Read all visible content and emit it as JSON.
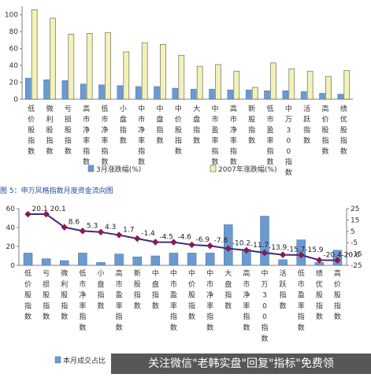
{
  "figure_caption": "图 5：申万风格指数月度资金流向图",
  "watermark": "关注微信\"老韩实盘\"回复\"指标\"免费领",
  "colors": {
    "bar_blue": "#6a9ad0",
    "bar_yellow": "#f2f2b8",
    "line_purple": "#3a2a8a",
    "marker_red": "#8a1a4a",
    "axis": "#7f7f7f"
  },
  "chart_data": [
    {
      "type": "bar",
      "categories": [
        "低价股指数",
        "微利股指数",
        "亏损股指数",
        "高市净率指数",
        "低市净率指数",
        "小盘指数",
        "中市净率指数",
        "中盘指数",
        "中价股指数",
        "大盘指数",
        "中市盈率指数",
        "高市净率指数",
        "新股指数",
        "低市盈率指数",
        "中万300指数",
        "活跃指数",
        "高价股指数",
        "绩优股指数"
      ],
      "series": [
        {
          "name": "3月涨跌幅(%)",
          "values": [
            25,
            23,
            22,
            18,
            17,
            16,
            15,
            15,
            13,
            12,
            12,
            11,
            11,
            10,
            10,
            9,
            7,
            6
          ]
        },
        {
          "name": "2007年涨跌幅(%)",
          "values": [
            106,
            96,
            77,
            78,
            79,
            56,
            67,
            65,
            52,
            39,
            41,
            33,
            14,
            43,
            36,
            33,
            27,
            34
          ]
        }
      ],
      "yticks": [
        0,
        20,
        40,
        60,
        80,
        100
      ],
      "ylim": [
        0,
        110
      ],
      "legend": "bottom"
    },
    {
      "type": "bar+line",
      "categories": [
        "低价股指数",
        "亏损股指数",
        "微利股指数",
        "低市净率指数",
        "小盘指数",
        "高市盈率指数",
        "新股指数",
        "中盘指数",
        "中市盈率指数",
        "中价股指数",
        "中市净率指数",
        "大盘指数",
        "高市净率指数",
        "中万300指数",
        "活跃指数",
        "低市盈率指数",
        "绩优股指数",
        "高价股指数"
      ],
      "series": [
        {
          "name": "本月成交占比",
          "axis": "left",
          "values": [
            13,
            7,
            5,
            13,
            3,
            12,
            9,
            10,
            13,
            13,
            13,
            43,
            17,
            52,
            6,
            27,
            3,
            16
          ]
        },
        {
          "name": "",
          "axis": "right",
          "values": [
            20.1,
            20.1,
            8.6,
            5.3,
            4.3,
            1.7,
            -1.4,
            -4.5,
            -4.6,
            -6.9,
            -7.8,
            -10.2,
            -11.7,
            -13.9,
            -15.7,
            -15.9,
            -20.4,
            -20.6
          ]
        }
      ],
      "value_labels": [
        "20.1",
        "20.1",
        "8.6",
        "5.3",
        "4.3",
        "1.7",
        "-1.4",
        "-4.5",
        "-4.6",
        "-6.9",
        "-7.8",
        "-10.2",
        "-11.7",
        "-13.9",
        "-15.7",
        "-15.9",
        "-20.4",
        "-20.6"
      ],
      "left_yticks": [
        0,
        20,
        40,
        60
      ],
      "left_ylim": [
        0,
        60
      ],
      "right_yticks": [
        25,
        15,
        5,
        -5,
        -15,
        -25
      ],
      "right_ylim": [
        -25,
        25
      ],
      "legend": "bottom"
    }
  ]
}
